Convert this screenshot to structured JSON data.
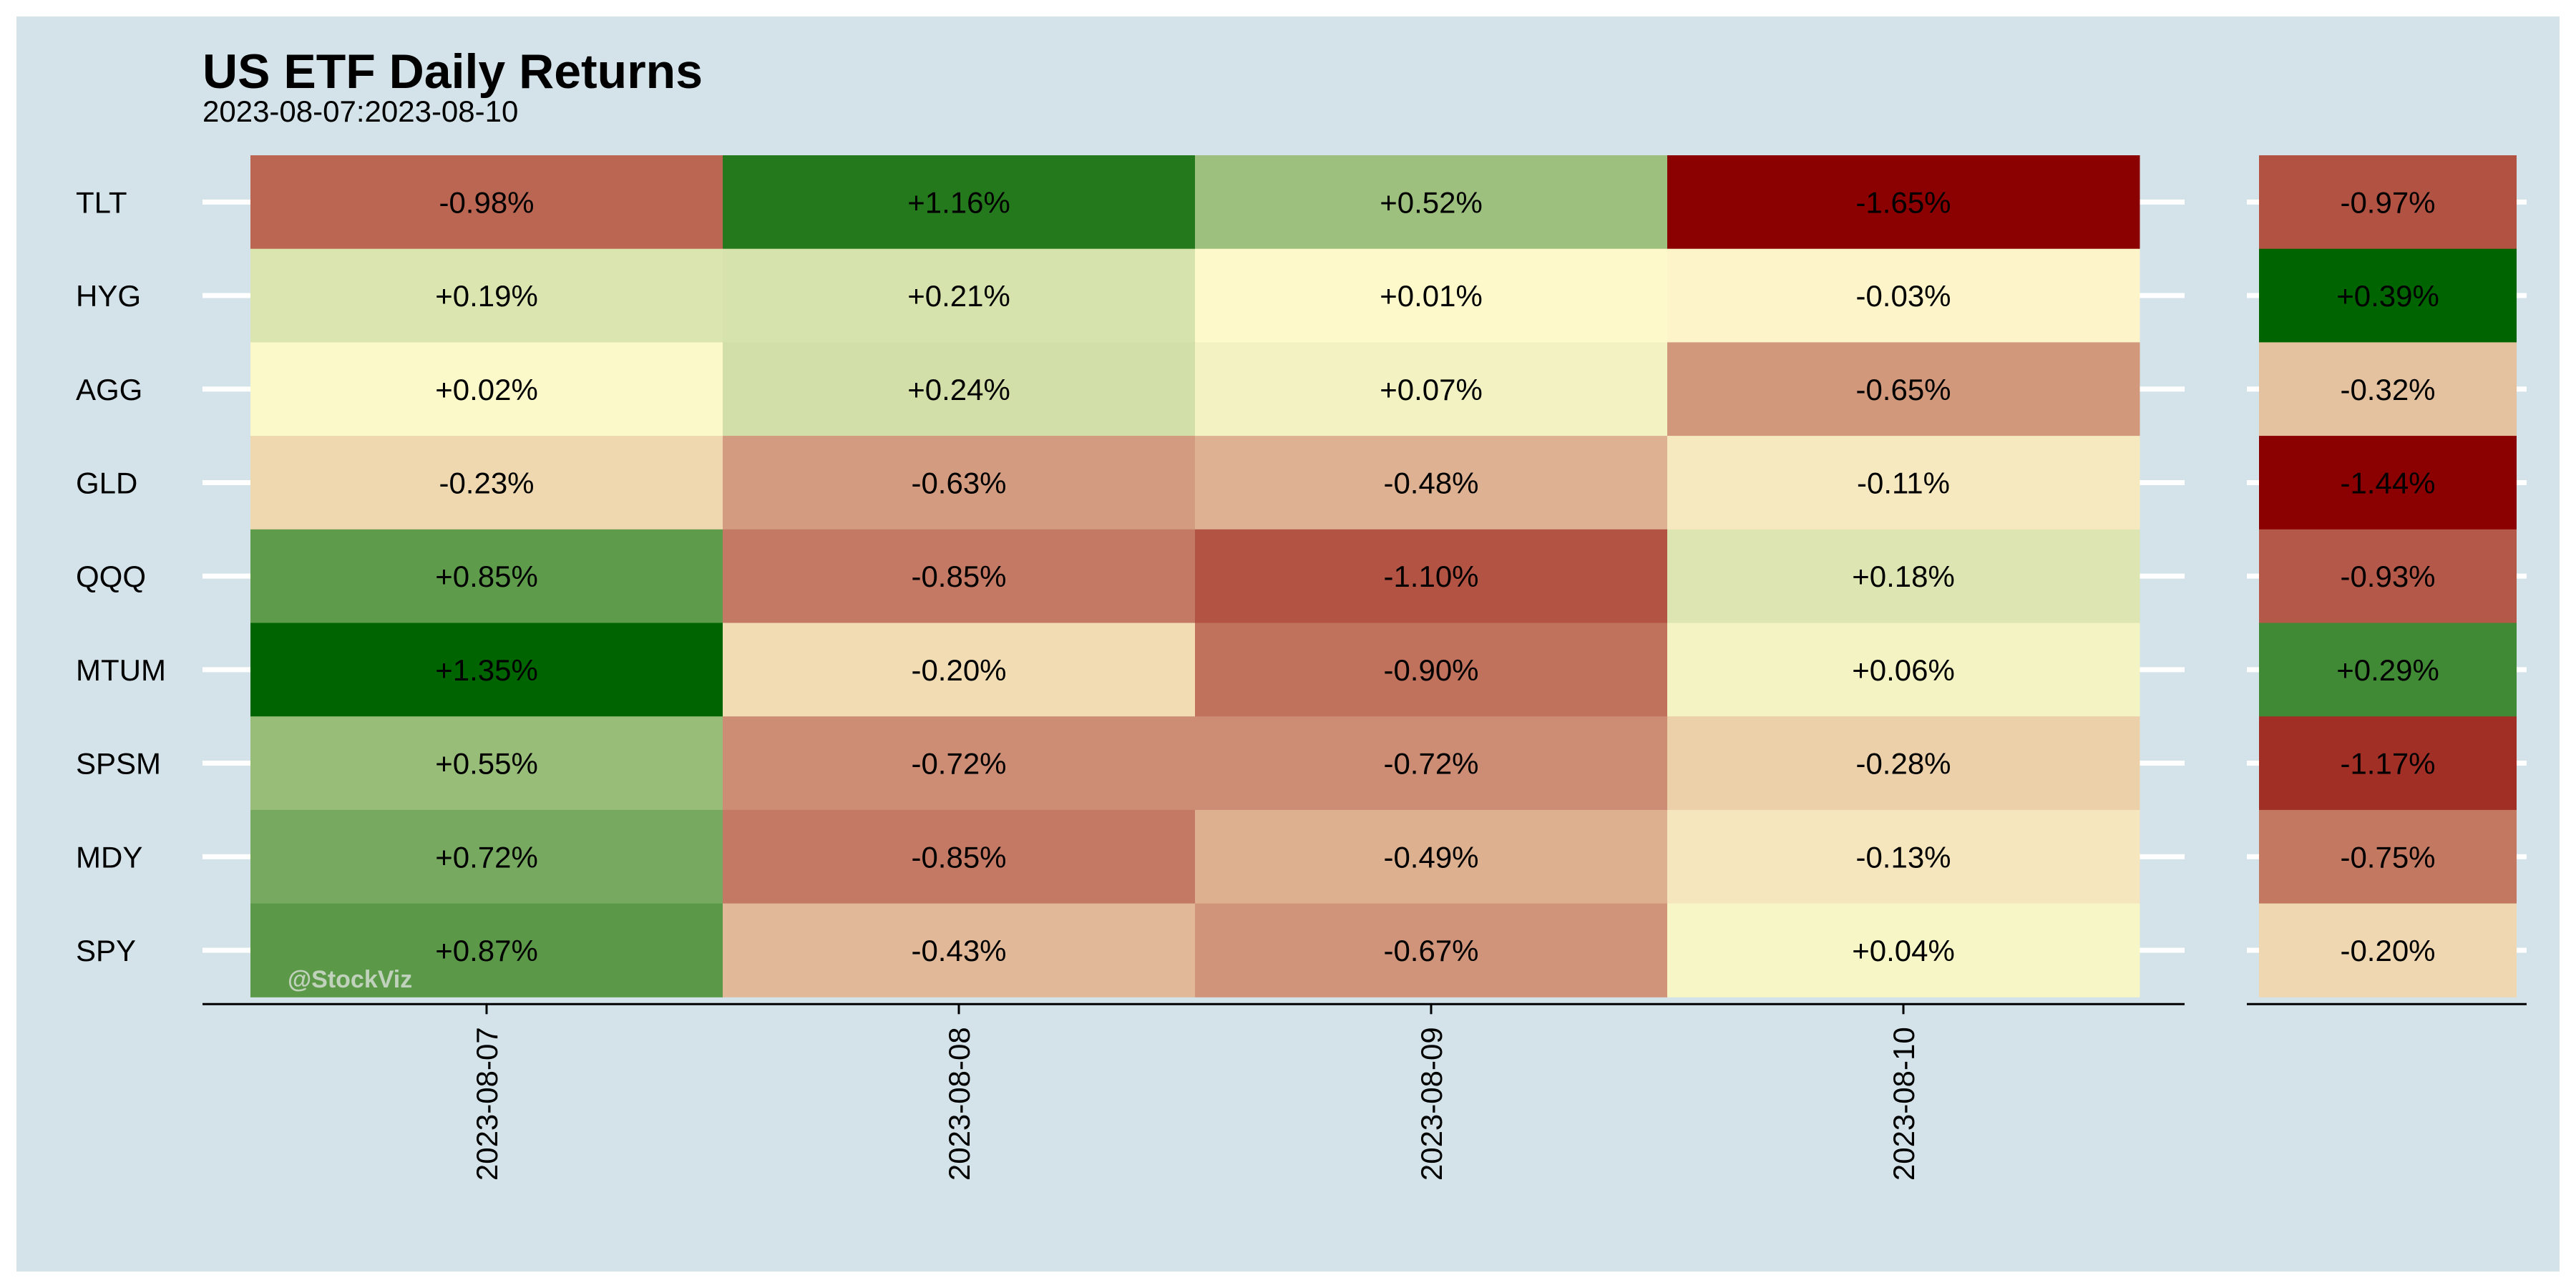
{
  "title": "US ETF Daily Returns",
  "subtitle": "2023-08-07:2023-08-10",
  "watermark": "@StockViz",
  "colors": {
    "background": "#d4e3ea",
    "negative_extreme": "#8b0000",
    "neutral": "#fffacd",
    "positive_extreme": "#006400"
  },
  "chart_data": [
    {
      "type": "heatmap",
      "title": "US ETF Daily Returns",
      "subtitle": "2023-08-07:2023-08-10",
      "x_categories": [
        "2023-08-07",
        "2023-08-08",
        "2023-08-09",
        "2023-08-10"
      ],
      "y_categories": [
        "TLT",
        "HYG",
        "AGG",
        "GLD",
        "QQQ",
        "MTUM",
        "SPSM",
        "MDY",
        "SPY"
      ],
      "values": [
        [
          -0.98,
          1.16,
          0.52,
          -1.65
        ],
        [
          0.19,
          0.21,
          0.01,
          -0.03
        ],
        [
          0.02,
          0.24,
          0.07,
          -0.65
        ],
        [
          -0.23,
          -0.63,
          -0.48,
          -0.11
        ],
        [
          0.85,
          -0.85,
          -1.1,
          0.18
        ],
        [
          1.35,
          -0.2,
          -0.9,
          0.06
        ],
        [
          0.55,
          -0.72,
          -0.72,
          -0.28
        ],
        [
          0.72,
          -0.85,
          -0.49,
          -0.13
        ],
        [
          0.87,
          -0.43,
          -0.67,
          0.04
        ]
      ],
      "labels": [
        [
          "-0.98%",
          "+1.16%",
          "+0.52%",
          "-1.65%"
        ],
        [
          "+0.19%",
          "+0.21%",
          "+0.01%",
          "-0.03%"
        ],
        [
          "+0.02%",
          "+0.24%",
          "+0.07%",
          "-0.65%"
        ],
        [
          "-0.23%",
          "-0.63%",
          "-0.48%",
          "-0.11%"
        ],
        [
          "+0.85%",
          "-0.85%",
          "-1.10%",
          "+0.18%"
        ],
        [
          "+1.35%",
          "-0.20%",
          "-0.90%",
          "+0.06%"
        ],
        [
          "+0.55%",
          "-0.72%",
          "-0.72%",
          "-0.28%"
        ],
        [
          "+0.72%",
          "-0.85%",
          "-0.49%",
          "-0.13%"
        ],
        [
          "+0.87%",
          "-0.43%",
          "-0.67%",
          "+0.04%"
        ]
      ],
      "color_scale": [
        "#8b0000",
        "#fffacd",
        "#006400"
      ],
      "grid": true
    },
    {
      "type": "heatmap",
      "y_categories": [
        "TLT",
        "HYG",
        "AGG",
        "GLD",
        "QQQ",
        "MTUM",
        "SPSM",
        "MDY",
        "SPY"
      ],
      "values": [
        -0.97,
        0.39,
        -0.32,
        -1.44,
        -0.93,
        0.29,
        -1.17,
        -0.75,
        -0.2
      ],
      "labels": [
        "-0.97%",
        "+0.39%",
        "-0.32%",
        "-1.44%",
        "-0.93%",
        "+0.29%",
        "-1.17%",
        "-0.75%",
        "-0.20%"
      ],
      "color_scale": [
        "#8b0000",
        "#fffacd",
        "#006400"
      ]
    }
  ]
}
